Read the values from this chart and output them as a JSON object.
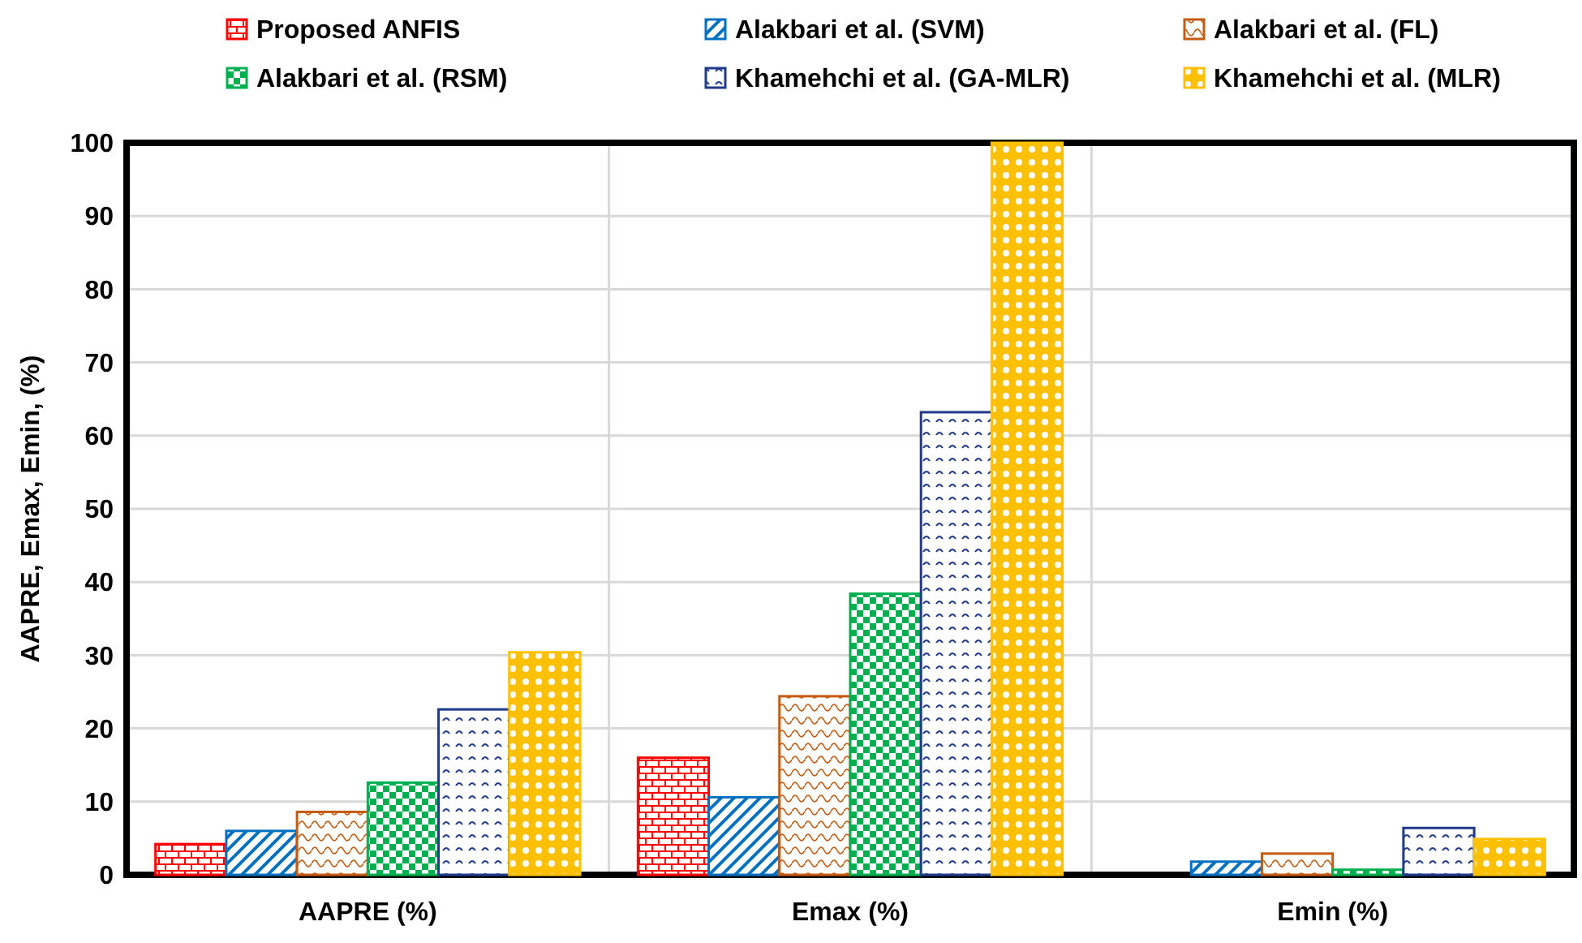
{
  "chart_data": {
    "type": "bar",
    "ylabel": "AAPRE, Emax, Emin, (%)",
    "categories": [
      "AAPRE (%)",
      "Emax (%)",
      "Emin (%)"
    ],
    "series": [
      {
        "name": "Proposed ANFIS",
        "color": "#ff0000",
        "values": [
          4.2,
          16.0,
          0
        ]
      },
      {
        "name": "Alakbari et al. (SVM)",
        "color": "#0070c0",
        "values": [
          6.0,
          10.6,
          1.8
        ]
      },
      {
        "name": "Alakbari et al. (FL)",
        "color": "#c55a11",
        "values": [
          8.6,
          24.4,
          2.9
        ]
      },
      {
        "name": "Alakbari et al. (RSM)",
        "color": "#00b050",
        "values": [
          12.6,
          38.4,
          0.7
        ]
      },
      {
        "name": "Khamehchi et al. (GA-MLR)",
        "color": "#1f3a8a",
        "values": [
          22.6,
          63.2,
          6.4
        ]
      },
      {
        "name": "Khamehchi et al. (MLR)",
        "color": "#ffc000",
        "values": [
          30.4,
          100,
          4.9
        ]
      }
    ],
    "ylim": [
      0,
      100
    ],
    "yticks": [
      0,
      10,
      20,
      30,
      40,
      50,
      60,
      70,
      80,
      90,
      100
    ],
    "grid": true,
    "legend": "top"
  }
}
